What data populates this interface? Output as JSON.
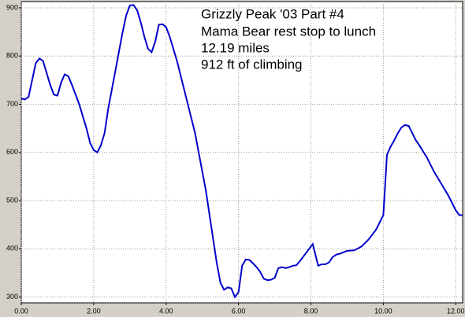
{
  "chart_data": {
    "type": "line",
    "title": "Grizzly Peak '03 Part #4",
    "annotations": [
      "Mama Bear rest stop to lunch",
      "12.19 miles",
      "912 ft of climbing"
    ],
    "x": [
      0.0,
      0.1,
      0.2,
      0.3,
      0.4,
      0.5,
      0.6,
      0.7,
      0.8,
      0.9,
      1.0,
      1.1,
      1.2,
      1.3,
      1.4,
      1.5,
      1.6,
      1.7,
      1.8,
      1.9,
      2.0,
      2.1,
      2.2,
      2.3,
      2.4,
      2.5,
      2.6,
      2.7,
      2.8,
      2.9,
      3.0,
      3.1,
      3.2,
      3.3,
      3.4,
      3.5,
      3.6,
      3.7,
      3.8,
      3.9,
      4.0,
      4.1,
      4.2,
      4.3,
      4.4,
      4.5,
      4.6,
      4.7,
      4.8,
      4.9,
      5.0,
      5.1,
      5.2,
      5.3,
      5.4,
      5.5,
      5.6,
      5.7,
      5.8,
      5.9,
      6.0,
      6.1,
      6.2,
      6.3,
      6.4,
      6.5,
      6.6,
      6.7,
      6.8,
      6.9,
      7.0,
      7.1,
      7.2,
      7.3,
      7.4,
      7.5,
      7.6,
      7.7,
      7.8,
      7.9,
      8.0,
      8.05,
      8.1,
      8.2,
      8.3,
      8.4,
      8.5,
      8.6,
      8.7,
      8.8,
      8.9,
      9.0,
      9.2,
      9.4,
      9.6,
      9.8,
      10.0,
      10.1,
      10.2,
      10.3,
      10.4,
      10.5,
      10.6,
      10.7,
      10.8,
      10.9,
      11.0,
      11.2,
      11.4,
      11.6,
      11.8,
      12.0,
      12.1,
      12.19
    ],
    "values": [
      712,
      710,
      715,
      750,
      785,
      795,
      790,
      765,
      740,
      720,
      718,
      745,
      762,
      758,
      740,
      720,
      700,
      675,
      650,
      620,
      605,
      600,
      615,
      640,
      690,
      730,
      770,
      810,
      850,
      885,
      905,
      906,
      895,
      870,
      840,
      815,
      808,
      830,
      865,
      866,
      860,
      840,
      815,
      790,
      760,
      730,
      700,
      670,
      640,
      600,
      560,
      520,
      470,
      420,
      370,
      330,
      315,
      320,
      318,
      300,
      310,
      365,
      378,
      377,
      370,
      362,
      352,
      338,
      335,
      336,
      340,
      360,
      362,
      360,
      362,
      365,
      366,
      375,
      385,
      395,
      405,
      410,
      395,
      365,
      368,
      368,
      372,
      383,
      388,
      390,
      393,
      396,
      397,
      405,
      420,
      440,
      470,
      595,
      612,
      625,
      640,
      652,
      657,
      655,
      640,
      625,
      614,
      590,
      560,
      535,
      510,
      480,
      470,
      470
    ],
    "color": "#0000cc",
    "xlim": [
      0,
      12.19
    ],
    "xticks": [
      {
        "value": 0,
        "label": "0.00"
      },
      {
        "value": 2,
        "label": "2.00"
      },
      {
        "value": 4,
        "label": "4.00"
      },
      {
        "value": 6,
        "label": "6.00"
      },
      {
        "value": 8,
        "label": "8.00"
      },
      {
        "value": 10,
        "label": "10.00"
      },
      {
        "value": 12,
        "label": "12.00"
      }
    ],
    "ylim": [
      288,
      913
    ],
    "yticks": [
      300,
      400,
      500,
      600,
      700,
      800,
      900
    ],
    "grid": true
  }
}
